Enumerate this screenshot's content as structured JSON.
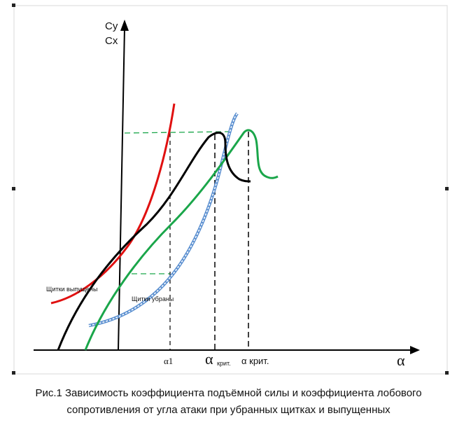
{
  "axes": {
    "y_label_top": "Cy",
    "y_label_bottom": "Cx",
    "x_label": "α"
  },
  "ticks": {
    "alpha1": "α1",
    "alpha_crit_symbol": "α",
    "alpha_crit_sub": "крит.",
    "alpha_crit_2": "α крит."
  },
  "labels": {
    "flaps_extended": "Щитки выпущены",
    "flaps_retracted": "Щитки убраны"
  },
  "caption": {
    "line1": "Рис.1 Зависимость коэффициента подъёмной силы и коэффициента лобового",
    "line2": "сопротивления от угла атаки при убранных щитках и выпущенных"
  },
  "colors": {
    "flaps_extended_curve": "#e01010",
    "black_curve": "#000000",
    "green_curve": "#1aa64a",
    "drag_curve": "#5a8fd0",
    "guide_green": "#1aa64a",
    "guide_black": "#000000"
  }
}
